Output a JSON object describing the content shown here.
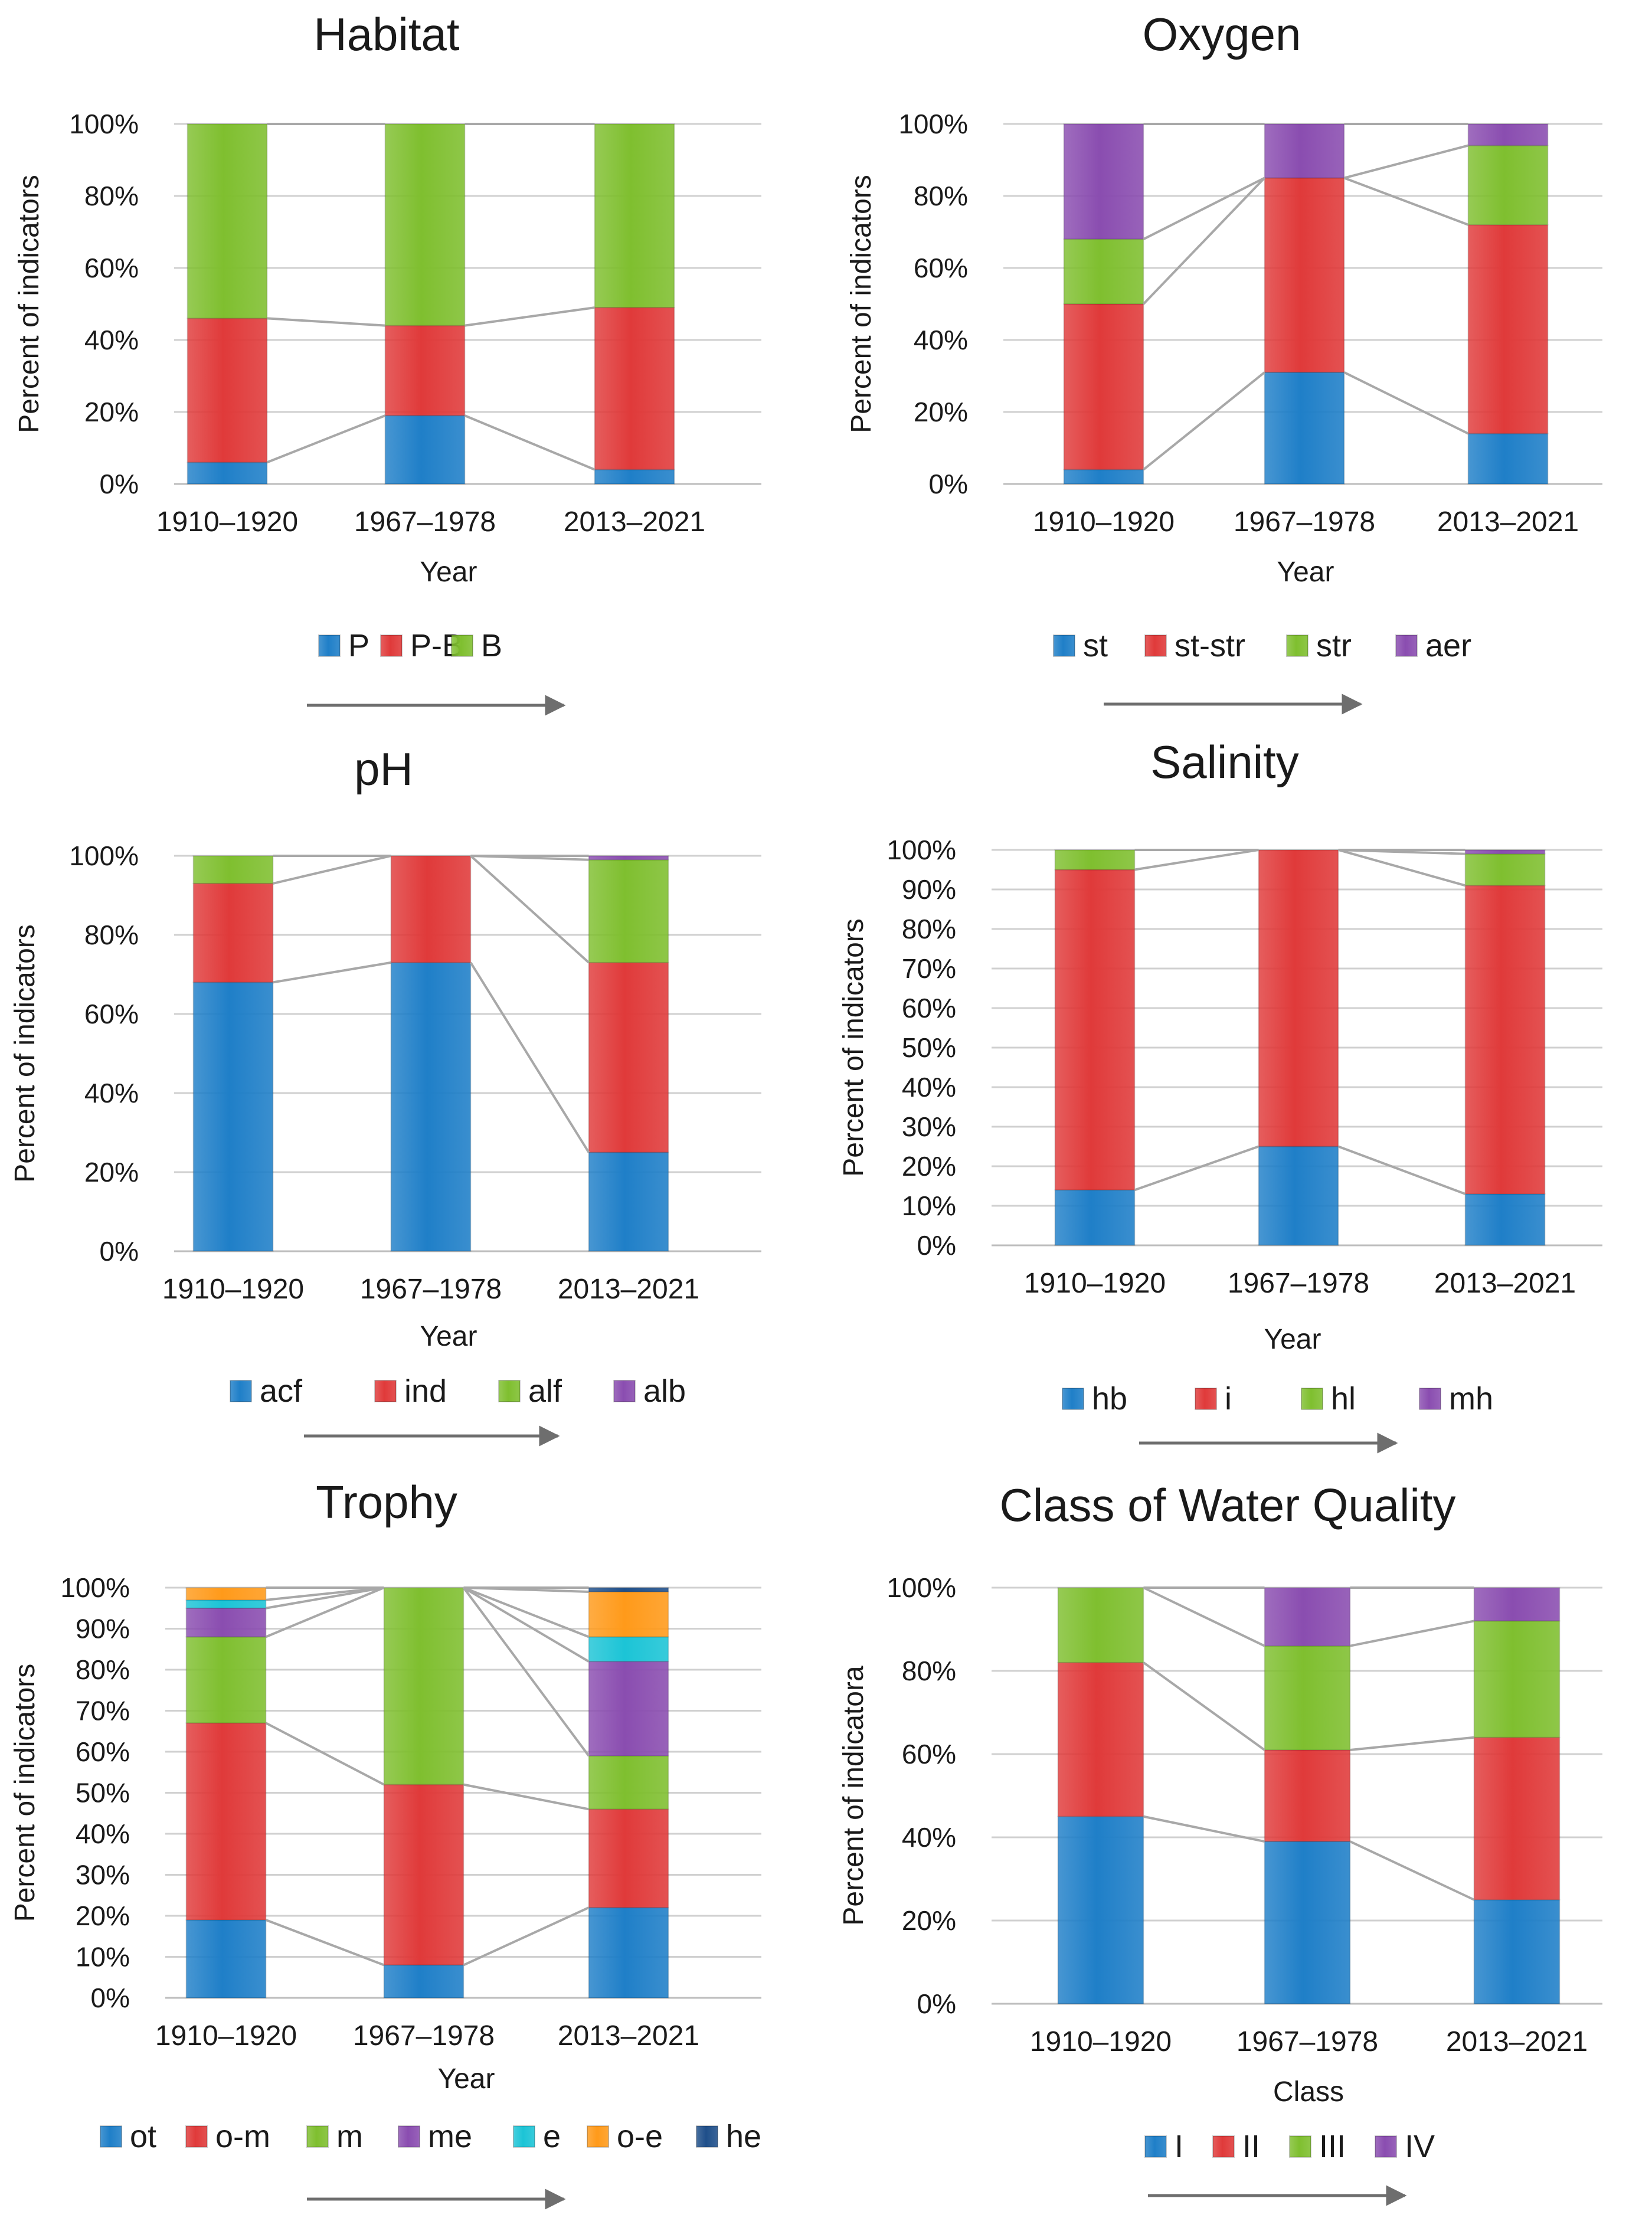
{
  "colors": {
    "blue": "#1f7fc8",
    "red": "#e03a3a",
    "green": "#7fbf2f",
    "purple": "#8a4db0",
    "cyan": "#1cc4d6",
    "orange": "#ff9a1a",
    "navy": "#1f4f8a",
    "grid": "#d0d0d0",
    "connector": "#a8a8a8",
    "arrow": "#6e6e6e"
  },
  "chart_data": [
    {
      "type": "bar",
      "stacked": true,
      "title": "Habitat",
      "xlabel": "Year",
      "ylabel": "Percent of indicators",
      "categories": [
        "1910–1920",
        "1967–1978",
        "2013–2021"
      ],
      "yticks": [
        "0%",
        "20%",
        "40%",
        "60%",
        "80%",
        "100%"
      ],
      "ylim": [
        0,
        100
      ],
      "series": [
        {
          "name": "P",
          "color": "blue",
          "values": [
            6,
            19,
            4
          ]
        },
        {
          "name": "P-B",
          "color": "red",
          "values": [
            40,
            25,
            45
          ]
        },
        {
          "name": "B",
          "color": "green",
          "values": [
            54,
            56,
            51
          ]
        }
      ],
      "legend_arrow": true
    },
    {
      "type": "bar",
      "stacked": true,
      "title": "Oxygen",
      "xlabel": "Year",
      "ylabel": "Percent of indicators",
      "categories": [
        "1910–1920",
        "1967–1978",
        "2013–2021"
      ],
      "yticks": [
        "0%",
        "20%",
        "40%",
        "60%",
        "80%",
        "100%"
      ],
      "ylim": [
        0,
        100
      ],
      "series": [
        {
          "name": "st",
          "color": "blue",
          "values": [
            4,
            31,
            14
          ]
        },
        {
          "name": "st-str",
          "color": "red",
          "values": [
            46,
            54,
            58
          ]
        },
        {
          "name": "str",
          "color": "green",
          "values": [
            18,
            0,
            22
          ]
        },
        {
          "name": "aer",
          "color": "purple",
          "values": [
            32,
            15,
            6
          ]
        }
      ],
      "legend_arrow": true
    },
    {
      "type": "bar",
      "stacked": true,
      "title": "pH",
      "xlabel": "Year",
      "ylabel": "Percent of indicators",
      "categories": [
        "1910–1920",
        "1967–1978",
        "2013–2021"
      ],
      "yticks": [
        "0%",
        "20%",
        "40%",
        "60%",
        "80%",
        "100%"
      ],
      "ylim": [
        0,
        100
      ],
      "series": [
        {
          "name": "acf",
          "color": "blue",
          "values": [
            68,
            73,
            25
          ]
        },
        {
          "name": "ind",
          "color": "red",
          "values": [
            25,
            27,
            48
          ]
        },
        {
          "name": "alf",
          "color": "green",
          "values": [
            7,
            0,
            26
          ]
        },
        {
          "name": "alb",
          "color": "purple",
          "values": [
            0,
            0,
            1
          ]
        }
      ],
      "legend_arrow": true
    },
    {
      "type": "bar",
      "stacked": true,
      "title": "Salinity",
      "xlabel": "Year",
      "ylabel": "Percent of indicators",
      "categories": [
        "1910–1920",
        "1967–1978",
        "2013–2021"
      ],
      "yticks": [
        "0%",
        "10%",
        "20%",
        "30%",
        "40%",
        "50%",
        "60%",
        "70%",
        "80%",
        "90%",
        "100%"
      ],
      "ylim": [
        0,
        100
      ],
      "series": [
        {
          "name": "hb",
          "color": "blue",
          "values": [
            14,
            25,
            13
          ]
        },
        {
          "name": "i",
          "color": "red",
          "values": [
            81,
            75,
            78
          ]
        },
        {
          "name": "hl",
          "color": "green",
          "values": [
            5,
            0,
            8
          ]
        },
        {
          "name": "mh",
          "color": "purple",
          "values": [
            0,
            0,
            1
          ]
        }
      ],
      "legend_arrow": true
    },
    {
      "type": "bar",
      "stacked": true,
      "title": "Trophy",
      "xlabel": "Year",
      "ylabel": "Percent of indicators",
      "categories": [
        "1910–1920",
        "1967–1978",
        "2013–2021"
      ],
      "yticks": [
        "0%",
        "10%",
        "20%",
        "30%",
        "40%",
        "50%",
        "60%",
        "70%",
        "80%",
        "90%",
        "100%"
      ],
      "ylim": [
        0,
        100
      ],
      "series": [
        {
          "name": "ot",
          "color": "blue",
          "values": [
            19,
            8,
            22
          ]
        },
        {
          "name": "o-m",
          "color": "red",
          "values": [
            48,
            44,
            24
          ]
        },
        {
          "name": "m",
          "color": "green",
          "values": [
            21,
            48,
            13
          ]
        },
        {
          "name": "me",
          "color": "purple",
          "values": [
            7,
            0,
            23
          ]
        },
        {
          "name": "e",
          "color": "cyan",
          "values": [
            2,
            0,
            6
          ]
        },
        {
          "name": "o-e",
          "color": "orange",
          "values": [
            3,
            0,
            11
          ]
        },
        {
          "name": "he",
          "color": "navy",
          "values": [
            0,
            0,
            1
          ]
        }
      ],
      "legend_arrow": true
    },
    {
      "type": "bar",
      "stacked": true,
      "title": "Class of Water Quality",
      "xlabel": "Class",
      "ylabel": "Percent of indicatora",
      "categories": [
        "1910–1920",
        "1967–1978",
        "2013–2021"
      ],
      "yticks": [
        "0%",
        "20%",
        "40%",
        "60%",
        "80%",
        "100%"
      ],
      "ylim": [
        0,
        100
      ],
      "series": [
        {
          "name": "I",
          "color": "blue",
          "values": [
            45,
            39,
            25
          ]
        },
        {
          "name": "II",
          "color": "red",
          "values": [
            37,
            22,
            39
          ]
        },
        {
          "name": "III",
          "color": "green",
          "values": [
            18,
            25,
            28
          ]
        },
        {
          "name": "IV",
          "color": "purple",
          "values": [
            0,
            14,
            8
          ]
        }
      ],
      "legend_arrow": true
    }
  ]
}
